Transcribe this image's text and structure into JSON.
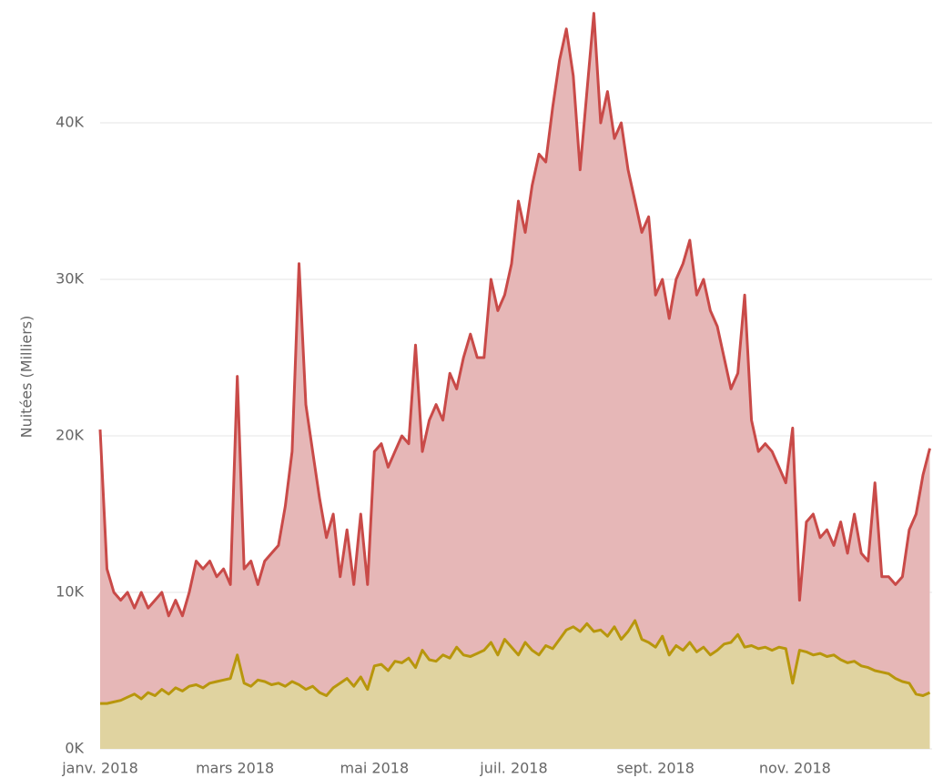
{
  "chart_data": {
    "type": "area",
    "ylabel": "Nuitées (Milliers)",
    "x": [
      0,
      3,
      6,
      9,
      12,
      15,
      18,
      21,
      24,
      27,
      30,
      33,
      36,
      39,
      42,
      45,
      48,
      51,
      54,
      57,
      60,
      63,
      66,
      69,
      72,
      75,
      78,
      81,
      84,
      87,
      90,
      93,
      96,
      99,
      102,
      105,
      108,
      111,
      114,
      117,
      120,
      123,
      126,
      129,
      132,
      135,
      138,
      141,
      144,
      147,
      150,
      153,
      156,
      159,
      162,
      165,
      168,
      171,
      174,
      177,
      180,
      183,
      186,
      189,
      192,
      195,
      198,
      201,
      204,
      207,
      210,
      213,
      216,
      219,
      222,
      225,
      228,
      231,
      234,
      237,
      240,
      243,
      246,
      249,
      252,
      255,
      258,
      261,
      264,
      267,
      270,
      273,
      276,
      279,
      282,
      285,
      288,
      291,
      294,
      297,
      300,
      303,
      306,
      309,
      312,
      315,
      318,
      321,
      324,
      327,
      330,
      333,
      336,
      339,
      342,
      345,
      348,
      351,
      354,
      357,
      360,
      363
    ],
    "xlim": [
      0,
      364
    ],
    "xticks": [
      {
        "value": 0,
        "label": "janv. 2018"
      },
      {
        "value": 59,
        "label": "mars 2018"
      },
      {
        "value": 120,
        "label": "mai 2018"
      },
      {
        "value": 181,
        "label": "juil. 2018"
      },
      {
        "value": 243,
        "label": "sept. 2018"
      },
      {
        "value": 304,
        "label": "nov. 2018"
      }
    ],
    "ylim": [
      0,
      47500
    ],
    "yticks": [
      {
        "value": 0,
        "label": "0K"
      },
      {
        "value": 10000,
        "label": "10K"
      },
      {
        "value": 20000,
        "label": "20K"
      },
      {
        "value": 30000,
        "label": "30K"
      },
      {
        "value": 40000,
        "label": "40K"
      }
    ],
    "grid": true,
    "series": [
      {
        "color": "#c94a48",
        "fill": "#e6b7b7",
        "values": [
          20400,
          11500,
          10000,
          9500,
          10000,
          9000,
          10000,
          9000,
          9500,
          10000,
          8500,
          9500,
          8500,
          10000,
          12000,
          11500,
          12000,
          11000,
          11500,
          10500,
          23800,
          11500,
          12000,
          10500,
          12000,
          12500,
          13000,
          15500,
          19000,
          31000,
          22000,
          19000,
          16000,
          13500,
          15000,
          11000,
          14000,
          10500,
          15000,
          10500,
          19000,
          19500,
          18000,
          19000,
          20000,
          19500,
          25800,
          19000,
          21000,
          22000,
          21000,
          24000,
          23000,
          25000,
          26500,
          25000,
          25000,
          30000,
          28000,
          29000,
          31000,
          35000,
          33000,
          36000,
          38000,
          37500,
          41000,
          44000,
          46000,
          43000,
          37000,
          42000,
          47000,
          40000,
          42000,
          39000,
          40000,
          37000,
          35000,
          33000,
          34000,
          29000,
          30000,
          27500,
          30000,
          31000,
          32500,
          29000,
          30000,
          28000,
          27000,
          25000,
          23000,
          24000,
          29000,
          21000,
          19000,
          19500,
          19000,
          18000,
          17000,
          20500,
          9500,
          14500,
          15000,
          13500,
          14000,
          13000,
          14500,
          12500,
          15000,
          12500,
          12000,
          17000,
          11000,
          11000,
          10500,
          11000,
          14000,
          15000,
          17500,
          19200
        ]
      },
      {
        "color": "#b8960c",
        "fill": "#e0d3a0",
        "values": [
          2900,
          2900,
          3000,
          3100,
          3300,
          3500,
          3200,
          3600,
          3400,
          3800,
          3500,
          3900,
          3700,
          4000,
          4100,
          3900,
          4200,
          4300,
          4400,
          4500,
          6000,
          4200,
          4000,
          4400,
          4300,
          4100,
          4200,
          4000,
          4300,
          4100,
          3800,
          4000,
          3600,
          3400,
          3900,
          4200,
          4500,
          4000,
          4600,
          3800,
          5300,
          5400,
          5000,
          5600,
          5500,
          5800,
          5200,
          6300,
          5700,
          5600,
          6000,
          5800,
          6500,
          6000,
          5900,
          6100,
          6300,
          6800,
          6000,
          7000,
          6500,
          6000,
          6800,
          6300,
          6000,
          6600,
          6400,
          7000,
          7600,
          7800,
          7500,
          8000,
          7500,
          7600,
          7200,
          7800,
          7000,
          7500,
          8200,
          7000,
          6800,
          6500,
          7200,
          6000,
          6600,
          6300,
          6800,
          6200,
          6500,
          6000,
          6300,
          6700,
          6800,
          7300,
          6500,
          6600,
          6400,
          6500,
          6300,
          6500,
          6400,
          4200,
          6300,
          6200,
          6000,
          6100,
          5900,
          6000,
          5700,
          5500,
          5600,
          5300,
          5200,
          5000,
          4900,
          4800,
          4500,
          4300,
          4200,
          3500,
          3400,
          3600
        ]
      }
    ]
  }
}
